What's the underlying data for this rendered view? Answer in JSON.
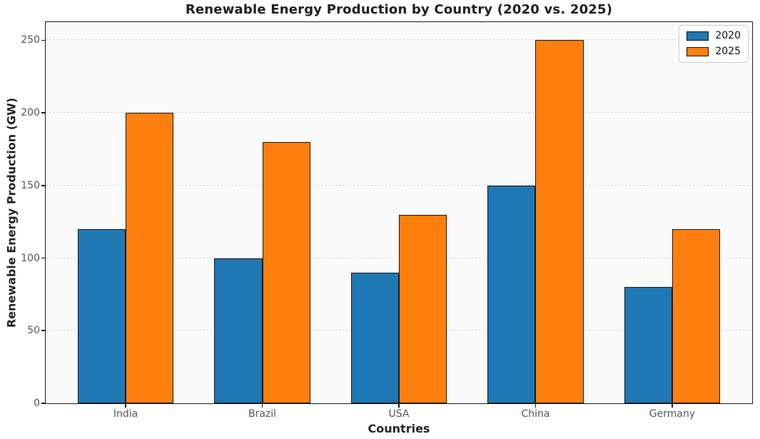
{
  "chart_data": {
    "type": "bar",
    "title": "Renewable Energy Production by Country (2020 vs. 2025)",
    "xlabel": "Countries",
    "ylabel": "Renewable Energy Production (GW)",
    "categories": [
      "India",
      "Brazil",
      "USA",
      "China",
      "Germany"
    ],
    "series": [
      {
        "name": "2020",
        "color": "#1f77b4",
        "values": [
          120,
          100,
          90,
          150,
          80
        ]
      },
      {
        "name": "2025",
        "color": "#ff7f0e",
        "values": [
          200,
          180,
          130,
          250,
          120
        ]
      }
    ],
    "yticks": [
      0,
      50,
      100,
      150,
      200,
      250
    ],
    "ylim": [
      0,
      262.5
    ],
    "xlim": [
      -0.585,
      4.585
    ],
    "bar_width": 0.35,
    "bar_edge_color": "#1a1a1a",
    "grid": "horizontal dashed gridlines at y ticks",
    "gridline_color": "#d6d6d6",
    "plot_background": "#fafafa",
    "figure_background": "#ffffff",
    "legend_position": "upper-right"
  }
}
